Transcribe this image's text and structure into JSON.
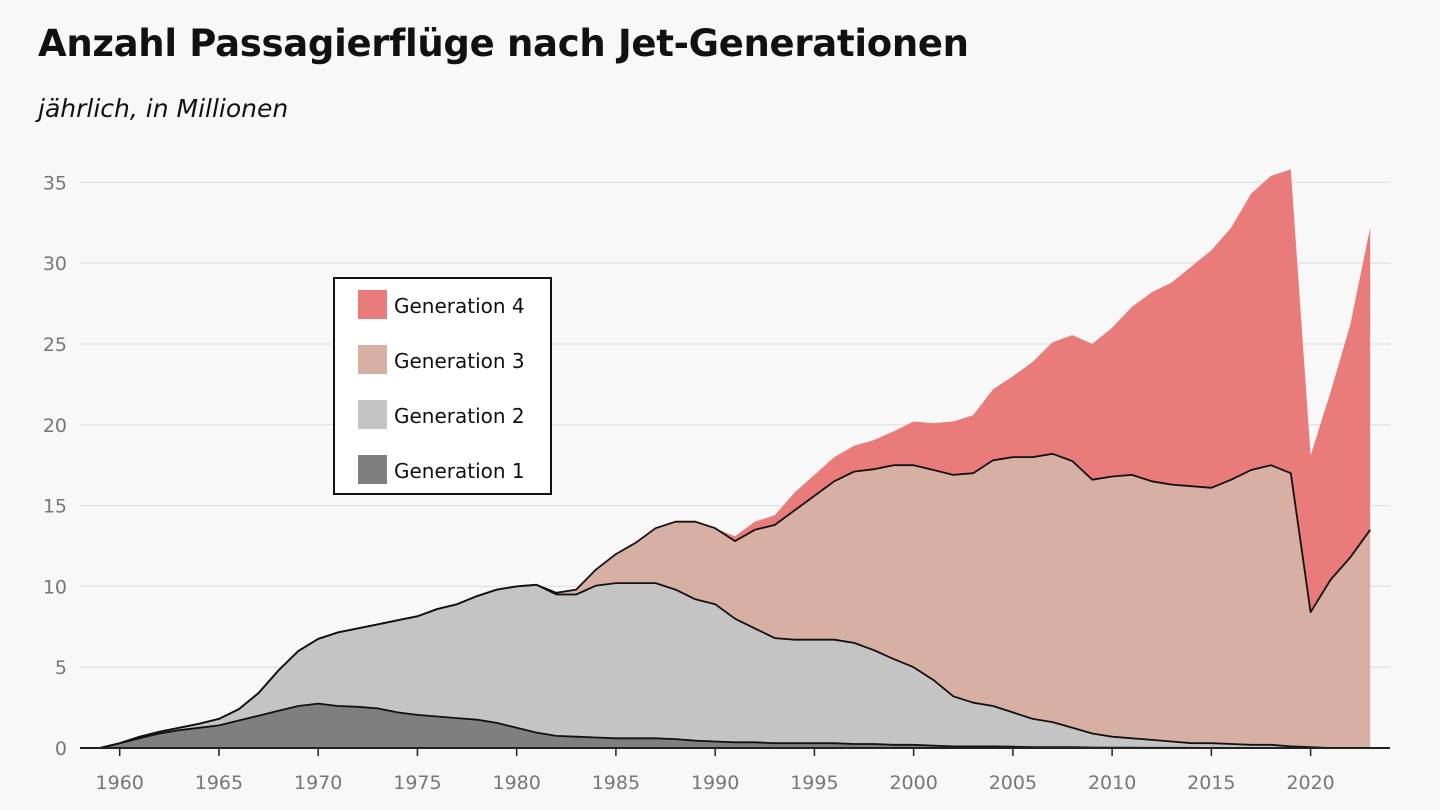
{
  "header": {
    "title": "Anzahl Passagierflüge nach Jet-Generationen",
    "subtitle": "jährlich, in Millionen"
  },
  "colors": {
    "generation_4": "#e97c7a",
    "generation_3": "#d8afa3",
    "generation_2": "#c4c4c4",
    "generation_1": "#7f7f7f",
    "grid": "#e5e5e5",
    "axis": "#222222"
  },
  "chart_data": {
    "type": "area",
    "stacked": true,
    "title": "Anzahl Passagierflüge nach Jet-Generationen",
    "subtitle": "jährlich, in Millionen",
    "xlabel": "",
    "ylabel": "",
    "xlim": [
      1958,
      2024
    ],
    "ylim": [
      0,
      37
    ],
    "grid": "horizontal",
    "legend_position": "upper-left",
    "x_ticks": [
      1960,
      1965,
      1970,
      1975,
      1980,
      1985,
      1990,
      1995,
      2000,
      2005,
      2010,
      2015,
      2020
    ],
    "y_ticks": [
      0,
      5,
      10,
      15,
      20,
      25,
      30,
      35
    ],
    "x": [
      1959,
      1960,
      1961,
      1962,
      1963,
      1964,
      1965,
      1966,
      1967,
      1968,
      1969,
      1970,
      1971,
      1972,
      1973,
      1974,
      1975,
      1976,
      1977,
      1978,
      1979,
      1980,
      1981,
      1982,
      1983,
      1984,
      1985,
      1986,
      1987,
      1988,
      1989,
      1990,
      1991,
      1992,
      1993,
      1994,
      1995,
      1996,
      1997,
      1998,
      1999,
      2000,
      2001,
      2002,
      2003,
      2004,
      2005,
      2006,
      2007,
      2008,
      2009,
      2010,
      2011,
      2012,
      2013,
      2014,
      2015,
      2016,
      2017,
      2018,
      2019,
      2020,
      2021,
      2022,
      2023
    ],
    "series": [
      {
        "name": "Generation 1",
        "values": [
          0,
          0.3,
          0.6,
          0.9,
          1.1,
          1.25,
          1.4,
          1.7,
          2.0,
          2.3,
          2.6,
          2.75,
          2.6,
          2.55,
          2.45,
          2.2,
          2.05,
          1.95,
          1.85,
          1.75,
          1.55,
          1.25,
          0.95,
          0.75,
          0.7,
          0.65,
          0.6,
          0.6,
          0.6,
          0.55,
          0.45,
          0.4,
          0.35,
          0.35,
          0.3,
          0.3,
          0.3,
          0.3,
          0.25,
          0.25,
          0.2,
          0.2,
          0.15,
          0.1,
          0.1,
          0.1,
          0.08,
          0.05,
          0.05,
          0.05,
          0.03,
          0.02,
          0.02,
          0.01,
          0.01,
          0.01,
          0,
          0,
          0,
          0,
          0,
          0,
          0,
          0,
          0
        ]
      },
      {
        "name": "Generation 2",
        "values": [
          0,
          0,
          0.1,
          0.1,
          0.15,
          0.25,
          0.4,
          0.7,
          1.4,
          2.5,
          3.4,
          4.0,
          4.55,
          4.85,
          5.2,
          5.7,
          6.1,
          6.65,
          7.05,
          7.65,
          8.25,
          8.75,
          9.15,
          8.75,
          8.8,
          9.4,
          9.6,
          9.6,
          9.6,
          9.25,
          8.75,
          8.5,
          7.65,
          7.05,
          6.5,
          6.4,
          6.4,
          6.4,
          6.25,
          5.8,
          5.3,
          4.8,
          4.05,
          3.1,
          2.7,
          2.5,
          2.12,
          1.75,
          1.55,
          1.2,
          0.87,
          0.68,
          0.58,
          0.49,
          0.39,
          0.29,
          0.3,
          0.25,
          0.2,
          0.2,
          0.1,
          0.05,
          0,
          0,
          0
        ]
      },
      {
        "name": "Generation 3",
        "values": [
          0,
          0,
          0,
          0,
          0,
          0,
          0,
          0,
          0,
          0,
          0,
          0,
          0,
          0,
          0,
          0,
          0,
          0,
          0,
          0,
          0,
          0,
          0,
          0.1,
          0.3,
          1.0,
          1.8,
          2.5,
          3.4,
          4.2,
          4.8,
          4.7,
          4.8,
          6.1,
          7.0,
          8.0,
          8.9,
          9.8,
          10.6,
          11.2,
          12.0,
          12.5,
          13.0,
          13.7,
          14.2,
          15.2,
          15.8,
          16.2,
          16.6,
          16.5,
          15.7,
          16.1,
          16.3,
          16.0,
          15.9,
          15.9,
          15.8,
          16.35,
          17.0,
          17.3,
          16.9,
          8.35,
          10.4,
          11.8,
          13.5
        ]
      },
      {
        "name": "Generation 4",
        "values": [
          0,
          0,
          0,
          0,
          0,
          0,
          0,
          0,
          0,
          0,
          0,
          0,
          0,
          0,
          0,
          0,
          0,
          0,
          0,
          0,
          0,
          0,
          0,
          0,
          0,
          0,
          0,
          0,
          0,
          0,
          0,
          0,
          0.3,
          0.5,
          0.6,
          1.1,
          1.3,
          1.5,
          1.6,
          1.8,
          2.1,
          2.7,
          2.9,
          3.3,
          3.6,
          4.4,
          5.0,
          5.9,
          6.9,
          7.8,
          8.4,
          9.2,
          10.4,
          11.7,
          12.5,
          13.6,
          14.7,
          15.6,
          17.1,
          17.9,
          18.8,
          9.7,
          11.6,
          14.4,
          18.7
        ]
      }
    ]
  }
}
